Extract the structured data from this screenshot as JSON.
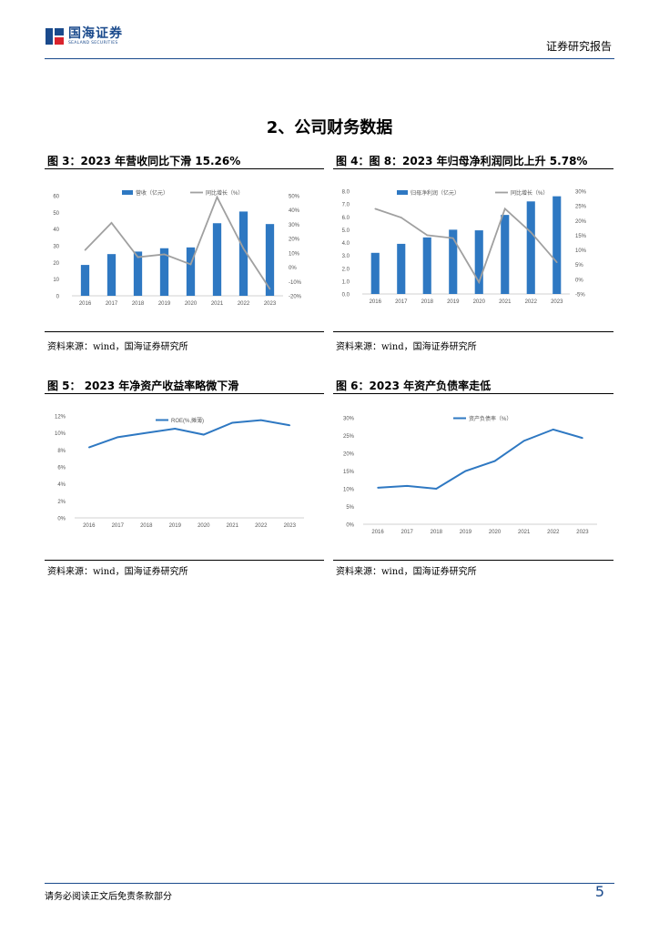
{
  "header": {
    "logo_cn": "国海证券",
    "logo_en": "SEALAND SECURITIES",
    "report_type": "证券研究报告"
  },
  "section_title": "2、公司财务数据",
  "colors": {
    "bar": "#2e78c2",
    "line_gray": "#a0a0a0",
    "brand": "#1a4a8c"
  },
  "figures": [
    {
      "caption": "图 3：2023 年营收同比下滑 15.26%",
      "source": "资料来源：wind，国海证券研究所"
    },
    {
      "caption": "图 4：图 8：2023 年归母净利润同比上升 5.78%",
      "source": "资料来源：wind，国海证券研究所"
    },
    {
      "caption": "图 5： 2023 年净资产收益率略微下滑",
      "source": "资料来源：wind，国海证券研究所"
    },
    {
      "caption": "图 6：2023 年资产负债率走低",
      "source": "资料来源：wind，国海证券研究所"
    }
  ],
  "chart_data": [
    {
      "type": "bar+line",
      "categories": [
        "2016",
        "2017",
        "2018",
        "2019",
        "2020",
        "2021",
        "2022",
        "2023"
      ],
      "series": [
        {
          "name": "营收（亿元）",
          "type": "bar",
          "axis": "left",
          "values": [
            18.5,
            25,
            26.5,
            28.5,
            29,
            43.5,
            50.5,
            43
          ]
        },
        {
          "name": "同比增长（%）",
          "type": "line",
          "axis": "right",
          "values": [
            12,
            31,
            7,
            9,
            2,
            49,
            13,
            -15.26
          ]
        }
      ],
      "y_left": {
        "min": 0,
        "max": 60,
        "step": 10,
        "ticks": [
          "0",
          "10",
          "20",
          "30",
          "40",
          "50",
          "60"
        ]
      },
      "y_right": {
        "min": -20,
        "max": 50,
        "step": 10,
        "ticks": [
          "-20%",
          "-10%",
          "0%",
          "10%",
          "20%",
          "30%",
          "40%",
          "50%"
        ]
      }
    },
    {
      "type": "bar+line",
      "categories": [
        "2016",
        "2017",
        "2018",
        "2019",
        "2020",
        "2021",
        "2022",
        "2023"
      ],
      "series": [
        {
          "name": "归母净利润（亿元）",
          "type": "bar",
          "axis": "left",
          "values": [
            3.2,
            3.9,
            4.4,
            5.0,
            4.95,
            6.15,
            7.2,
            7.6
          ]
        },
        {
          "name": "同比增长（%）",
          "type": "line",
          "axis": "right",
          "values": [
            24,
            21,
            15,
            14,
            -1,
            24,
            16,
            5.78
          ]
        }
      ],
      "y_left": {
        "min": 0,
        "max": 8,
        "step": 1,
        "ticks": [
          "0.0",
          "1.0",
          "2.0",
          "3.0",
          "4.0",
          "5.0",
          "6.0",
          "7.0",
          "8.0"
        ]
      },
      "y_right": {
        "min": -5,
        "max": 30,
        "step": 5,
        "ticks": [
          "-5%",
          "0%",
          "5%",
          "10%",
          "15%",
          "20%",
          "25%",
          "30%"
        ]
      }
    },
    {
      "type": "line",
      "categories": [
        "2016",
        "2017",
        "2018",
        "2019",
        "2020",
        "2021",
        "2022",
        "2023"
      ],
      "series": [
        {
          "name": "ROE(%,摊薄)",
          "values": [
            8.3,
            9.5,
            10.0,
            10.5,
            9.8,
            11.2,
            11.5,
            10.9
          ]
        }
      ],
      "y": {
        "min": 0,
        "max": 12,
        "step": 2,
        "ticks": [
          "0%",
          "2%",
          "4%",
          "6%",
          "8%",
          "10%",
          "12%"
        ]
      }
    },
    {
      "type": "line",
      "categories": [
        "2016",
        "2017",
        "2018",
        "2019",
        "2020",
        "2021",
        "2022",
        "2023"
      ],
      "series": [
        {
          "name": "资产负债率（%）",
          "values": [
            10.3,
            10.8,
            10.0,
            15.0,
            17.8,
            23.5,
            26.7,
            24.3
          ]
        }
      ],
      "y": {
        "min": 0,
        "max": 30,
        "step": 5,
        "ticks": [
          "0%",
          "5%",
          "10%",
          "15%",
          "20%",
          "25%",
          "30%"
        ]
      }
    }
  ],
  "footer": {
    "disclaimer": "请务必阅读正文后免责条款部分",
    "page": "5"
  }
}
